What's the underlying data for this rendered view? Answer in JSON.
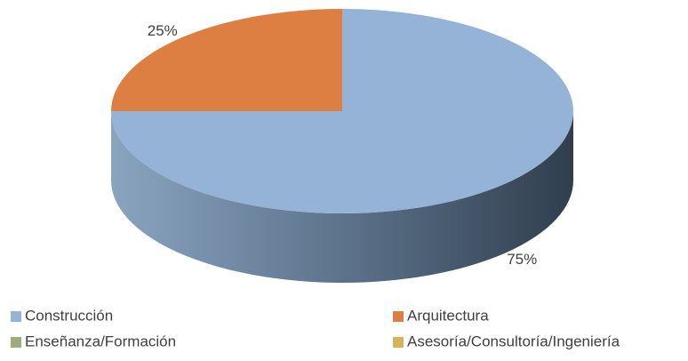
{
  "chart_data": {
    "type": "pie",
    "categories": [
      "Construcción",
      "Arquitectura",
      "Enseñanza/Formación",
      "Asesoría/Consultoría/Ingeniería"
    ],
    "values": [
      75,
      25,
      0,
      0
    ],
    "value_labels": [
      "75%",
      "25%",
      null,
      null
    ],
    "colors": [
      "#95b3d7",
      "#dd7e43",
      "#9eab7b",
      "#d6b25c"
    ],
    "legend": "bottom"
  }
}
